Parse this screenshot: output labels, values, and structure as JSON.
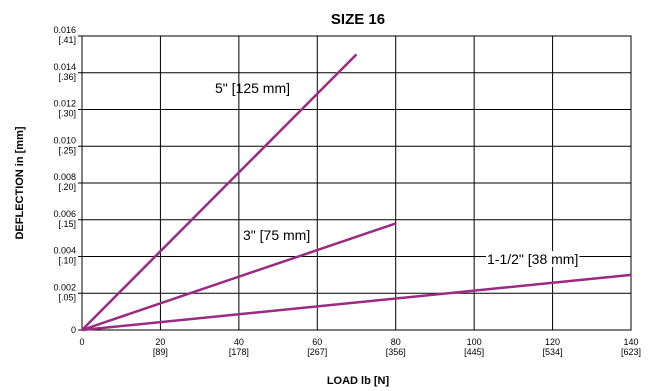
{
  "chart_data": {
    "type": "line",
    "title": "SIZE 16",
    "xlabel": "LOAD lb [N]",
    "ylabel": "DEFLECTION  in  [mm]",
    "xlim": [
      0,
      140
    ],
    "ylim": [
      0,
      0.016
    ],
    "grid": true,
    "x_ticks": [
      {
        "value": 0,
        "label": "0",
        "sublabel": ""
      },
      {
        "value": 20,
        "label": "20",
        "sublabel": "[89]"
      },
      {
        "value": 40,
        "label": "40",
        "sublabel": "[178]"
      },
      {
        "value": 60,
        "label": "60",
        "sublabel": "[267]"
      },
      {
        "value": 80,
        "label": "80",
        "sublabel": "[356]"
      },
      {
        "value": 100,
        "label": "100",
        "sublabel": "[445]"
      },
      {
        "value": 120,
        "label": "120",
        "sublabel": "[534]"
      },
      {
        "value": 140,
        "label": "140",
        "sublabel": "[623]"
      }
    ],
    "y_ticks": [
      {
        "value": 0,
        "label": "0",
        "sublabel": ""
      },
      {
        "value": 0.002,
        "label": "0.002",
        "sublabel": "[.05]"
      },
      {
        "value": 0.004,
        "label": "0.004",
        "sublabel": "[.10]"
      },
      {
        "value": 0.006,
        "label": "0.006",
        "sublabel": "[.15]"
      },
      {
        "value": 0.008,
        "label": "0.008",
        "sublabel": "[.20]"
      },
      {
        "value": 0.01,
        "label": "0.010",
        "sublabel": "[.25]"
      },
      {
        "value": 0.012,
        "label": "0.012",
        "sublabel": "[.30]"
      },
      {
        "value": 0.014,
        "label": "0.014",
        "sublabel": "[.36]"
      },
      {
        "value": 0.016,
        "label": "0.016",
        "sublabel": "[.41]"
      }
    ],
    "series": [
      {
        "name": "5\" [125 mm]",
        "x": [
          0,
          70
        ],
        "y": [
          0,
          0.015
        ]
      },
      {
        "name": "3\" [75 mm]",
        "x": [
          0,
          80
        ],
        "y": [
          0,
          0.0058
        ]
      },
      {
        "name": "1-1/2\" [38 mm]",
        "x": [
          0,
          140
        ],
        "y": [
          0,
          0.003
        ]
      }
    ],
    "line_color": "#9b2a83"
  }
}
